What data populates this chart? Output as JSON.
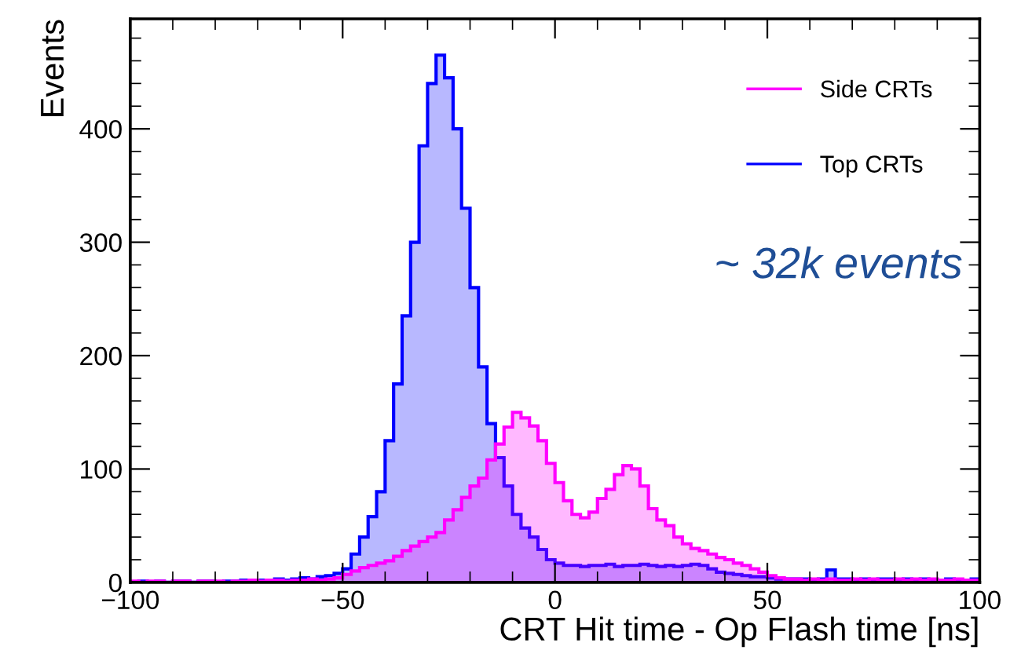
{
  "chart_data": {
    "type": "histogram",
    "xlabel": "CRT Hit time - Op Flash time [ns]",
    "ylabel": "Events",
    "bins": [
      -100,
      -98,
      -96,
      -94,
      -92,
      -90,
      -88,
      -86,
      -84,
      -82,
      -80,
      -78,
      -76,
      -74,
      -72,
      -70,
      -68,
      -66,
      -64,
      -62,
      -60,
      -58,
      -56,
      -54,
      -52,
      -50,
      -48,
      -46,
      -44,
      -42,
      -40,
      -38,
      -36,
      -34,
      -32,
      -30,
      -28,
      -26,
      -24,
      -22,
      -20,
      -18,
      -16,
      -14,
      -12,
      -10,
      -8,
      -6,
      -4,
      -2,
      0,
      2,
      4,
      6,
      8,
      10,
      12,
      14,
      16,
      18,
      20,
      22,
      24,
      26,
      28,
      30,
      32,
      34,
      36,
      38,
      40,
      42,
      44,
      46,
      48,
      50,
      52,
      54,
      56,
      58,
      60,
      62,
      64,
      66,
      68,
      70,
      72,
      74,
      76,
      78,
      80,
      82,
      84,
      86,
      88,
      90,
      92,
      94,
      96,
      98,
      100
    ],
    "series": [
      {
        "name": "Side CRTs",
        "color": "#ff00ff",
        "values": [
          1,
          0,
          1,
          1,
          0,
          1,
          1,
          0,
          1,
          1,
          1,
          0,
          1,
          1,
          2,
          1,
          2,
          2,
          1,
          2,
          2,
          3,
          2,
          3,
          4,
          7,
          10,
          13,
          15,
          17,
          19,
          23,
          28,
          32,
          36,
          40,
          44,
          55,
          64,
          75,
          85,
          92,
          108,
          122,
          137,
          150,
          145,
          138,
          125,
          105,
          88,
          72,
          60,
          57,
          62,
          74,
          82,
          95,
          103,
          100,
          85,
          65,
          55,
          50,
          40,
          34,
          30,
          28,
          25,
          22,
          20,
          17,
          15,
          12,
          9,
          6,
          4,
          3,
          3,
          2,
          3,
          2,
          3,
          2,
          2,
          3,
          2,
          3,
          2,
          2,
          3,
          2,
          3,
          2,
          3,
          2,
          2,
          3,
          2,
          2
        ]
      },
      {
        "name": "Top CRTs",
        "color": "#0000ff",
        "values": [
          0,
          1,
          0,
          1,
          0,
          1,
          1,
          0,
          1,
          1,
          0,
          1,
          1,
          2,
          1,
          2,
          2,
          3,
          2,
          3,
          4,
          3,
          5,
          6,
          8,
          12,
          25,
          40,
          58,
          80,
          125,
          175,
          235,
          300,
          385,
          440,
          465,
          445,
          400,
          330,
          260,
          190,
          140,
          110,
          85,
          60,
          48,
          40,
          29,
          20,
          17,
          15,
          15,
          14,
          15,
          15,
          16,
          14,
          15,
          15,
          16,
          15,
          14,
          15,
          14,
          15,
          16,
          15,
          12,
          9,
          8,
          7,
          6,
          5,
          5,
          4,
          3,
          3,
          3,
          3,
          2,
          3,
          11,
          3,
          3,
          2,
          3,
          2,
          3,
          3,
          2,
          3,
          2,
          3,
          2,
          2,
          3,
          2,
          2,
          3
        ]
      }
    ],
    "xlim": [
      -100,
      100
    ],
    "xticks": [
      -100,
      -50,
      0,
      50,
      100
    ],
    "ylim": [
      0,
      497
    ],
    "yticks": [
      0,
      100,
      200,
      300,
      400
    ],
    "legend": "top right",
    "grid": false,
    "annotations": [
      "~ 32k events"
    ]
  }
}
